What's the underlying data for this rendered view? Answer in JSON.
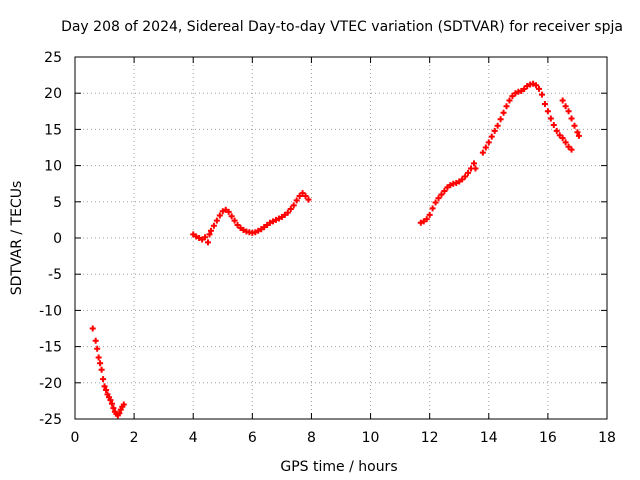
{
  "chart_data": {
    "type": "scatter",
    "title": "Day 208 of 2024, Sidereal Day-to-day VTEC variation (SDTVAR) for receiver spja",
    "xlabel": "GPS time / hours",
    "ylabel": "SDTVAR / TECUs",
    "xlim": [
      0,
      18
    ],
    "ylim": [
      -25,
      25
    ],
    "xticks": [
      0,
      2,
      4,
      6,
      8,
      10,
      12,
      14,
      16,
      18
    ],
    "yticks": [
      -25,
      -20,
      -15,
      -10,
      -5,
      0,
      5,
      10,
      15,
      20,
      25
    ],
    "grid": true,
    "legend": "none",
    "marker": "+",
    "series": [
      {
        "name": "SDTVAR spja",
        "color": "#ff0000",
        "segments": [
          [
            [
              0.6,
              -12.5
            ],
            [
              0.7,
              -14.2
            ],
            [
              0.75,
              -15.3
            ],
            [
              0.8,
              -16.5
            ],
            [
              0.85,
              -17.3
            ],
            [
              0.9,
              -18.2
            ],
            [
              0.95,
              -19.5
            ],
            [
              1.0,
              -20.5
            ],
            [
              1.05,
              -21.0
            ],
            [
              1.1,
              -21.6
            ],
            [
              1.15,
              -22.0
            ],
            [
              1.2,
              -22.4
            ],
            [
              1.25,
              -22.9
            ],
            [
              1.3,
              -23.5
            ],
            [
              1.35,
              -24.0
            ],
            [
              1.4,
              -24.3
            ],
            [
              1.45,
              -24.5
            ],
            [
              1.5,
              -24.2
            ],
            [
              1.55,
              -23.7
            ],
            [
              1.6,
              -23.3
            ],
            [
              1.65,
              -23.0
            ]
          ],
          [
            [
              4.0,
              0.5
            ],
            [
              4.1,
              0.2
            ],
            [
              4.2,
              0.0
            ],
            [
              4.3,
              -0.2
            ],
            [
              4.4,
              0.1
            ],
            [
              4.5,
              -0.6
            ],
            [
              4.55,
              0.5
            ],
            [
              4.6,
              1.0
            ],
            [
              4.7,
              1.7
            ],
            [
              4.8,
              2.4
            ],
            [
              4.9,
              3.1
            ],
            [
              5.0,
              3.7
            ],
            [
              5.1,
              3.9
            ],
            [
              5.2,
              3.6
            ],
            [
              5.3,
              3.0
            ],
            [
              5.4,
              2.4
            ],
            [
              5.5,
              1.8
            ],
            [
              5.6,
              1.4
            ],
            [
              5.7,
              1.1
            ],
            [
              5.8,
              0.9
            ],
            [
              5.9,
              0.8
            ],
            [
              6.0,
              0.7
            ],
            [
              6.1,
              0.8
            ],
            [
              6.2,
              1.0
            ],
            [
              6.3,
              1.2
            ],
            [
              6.4,
              1.5
            ],
            [
              6.5,
              1.8
            ],
            [
              6.6,
              2.1
            ],
            [
              6.7,
              2.3
            ],
            [
              6.8,
              2.5
            ],
            [
              6.9,
              2.7
            ],
            [
              7.0,
              2.9
            ],
            [
              7.1,
              3.2
            ],
            [
              7.2,
              3.5
            ],
            [
              7.3,
              4.0
            ],
            [
              7.4,
              4.5
            ],
            [
              7.5,
              5.2
            ],
            [
              7.6,
              5.8
            ],
            [
              7.7,
              6.2
            ],
            [
              7.8,
              5.8
            ],
            [
              7.9,
              5.3
            ]
          ],
          [
            [
              11.7,
              2.1
            ],
            [
              11.8,
              2.3
            ],
            [
              11.9,
              2.6
            ],
            [
              12.0,
              3.2
            ],
            [
              12.1,
              4.1
            ],
            [
              12.2,
              4.9
            ],
            [
              12.3,
              5.5
            ],
            [
              12.4,
              6.0
            ],
            [
              12.5,
              6.5
            ],
            [
              12.6,
              7.0
            ],
            [
              12.7,
              7.3
            ],
            [
              12.8,
              7.5
            ],
            [
              12.9,
              7.6
            ],
            [
              13.0,
              7.8
            ],
            [
              13.1,
              8.1
            ],
            [
              13.2,
              8.5
            ],
            [
              13.3,
              9.0
            ],
            [
              13.4,
              9.6
            ],
            [
              13.5,
              10.3
            ],
            [
              13.55,
              9.6
            ],
            [
              13.8,
              11.8
            ],
            [
              13.9,
              12.5
            ],
            [
              14.0,
              13.2
            ],
            [
              14.1,
              14.0
            ],
            [
              14.2,
              14.8
            ],
            [
              14.3,
              15.5
            ],
            [
              14.4,
              16.4
            ],
            [
              14.5,
              17.3
            ],
            [
              14.6,
              18.2
            ],
            [
              14.7,
              19.0
            ],
            [
              14.8,
              19.6
            ],
            [
              14.9,
              20.0
            ],
            [
              15.0,
              20.2
            ],
            [
              15.1,
              20.3
            ],
            [
              15.2,
              20.6
            ],
            [
              15.3,
              21.0
            ],
            [
              15.4,
              21.2
            ],
            [
              15.5,
              21.3
            ],
            [
              15.6,
              21.1
            ],
            [
              15.7,
              20.6
            ],
            [
              15.8,
              19.8
            ],
            [
              15.9,
              18.5
            ],
            [
              16.0,
              17.5
            ],
            [
              16.1,
              16.5
            ],
            [
              16.2,
              15.6
            ],
            [
              16.3,
              14.8
            ],
            [
              16.4,
              14.2
            ],
            [
              16.5,
              13.8
            ],
            [
              16.6,
              13.2
            ],
            [
              16.7,
              12.6
            ],
            [
              16.8,
              12.2
            ],
            [
              16.5,
              19.0
            ],
            [
              16.6,
              18.2
            ],
            [
              16.7,
              17.5
            ],
            [
              16.8,
              16.5
            ],
            [
              16.9,
              15.5
            ],
            [
              17.0,
              14.6
            ],
            [
              17.05,
              14.1
            ]
          ]
        ]
      }
    ]
  }
}
